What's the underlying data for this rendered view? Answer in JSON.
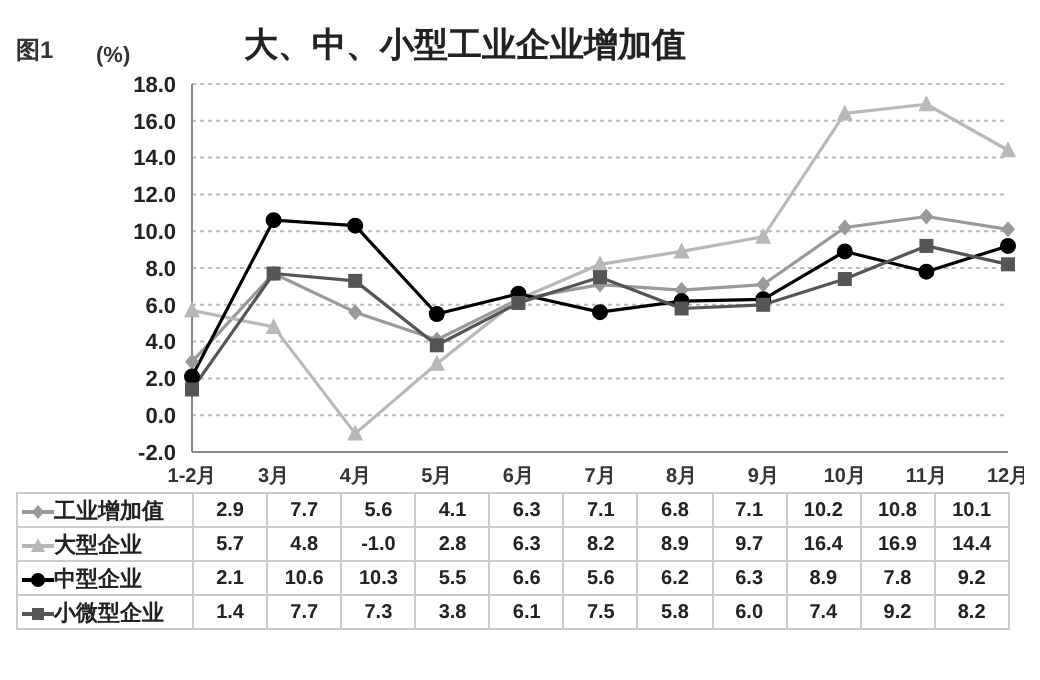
{
  "chart_data": {
    "type": "line",
    "title": "大、中、小型工业企业增加值",
    "ylabel": "(%)",
    "annotations": [
      "图1"
    ],
    "categories": [
      "1-2月",
      "3月",
      "4月",
      "5月",
      "6月",
      "7月",
      "8月",
      "9月",
      "10月",
      "11月",
      "12月"
    ],
    "series": [
      {
        "name": "工业增加值",
        "color": "#999999",
        "marker": "diamond",
        "values": [
          2.9,
          7.7,
          5.6,
          4.1,
          6.3,
          7.1,
          6.8,
          7.1,
          10.2,
          10.8,
          10.1
        ],
        "value_labels": [
          "2.9",
          "7.7",
          "5.6",
          "4.1",
          "6.3",
          "7.1",
          "6.8",
          "7.1",
          "10.2",
          "10.8",
          "10.1"
        ]
      },
      {
        "name": "大型企业",
        "color": "#b8b8b8",
        "marker": "triangle",
        "values": [
          5.7,
          4.8,
          -1.0,
          2.8,
          6.3,
          8.2,
          8.9,
          9.7,
          16.4,
          16.9,
          14.4
        ],
        "value_labels": [
          "5.7",
          "4.8",
          "-1.0",
          "2.8",
          "6.3",
          "8.2",
          "8.9",
          "9.7",
          "16.4",
          "16.9",
          "14.4"
        ]
      },
      {
        "name": "中型企业",
        "color": "#000000",
        "marker": "circle",
        "values": [
          2.1,
          10.6,
          10.3,
          5.5,
          6.6,
          5.6,
          6.2,
          6.3,
          8.9,
          7.8,
          9.2
        ],
        "value_labels": [
          "2.1",
          "10.6",
          "10.3",
          "5.5",
          "6.6",
          "5.6",
          "6.2",
          "6.3",
          "8.9",
          "7.8",
          "9.2"
        ]
      },
      {
        "name": "小微型企业",
        "color": "#555555",
        "marker": "square",
        "values": [
          1.4,
          7.7,
          7.3,
          3.8,
          6.1,
          7.5,
          5.8,
          6.0,
          7.4,
          9.2,
          8.2
        ],
        "value_labels": [
          "1.4",
          "7.7",
          "7.3",
          "3.8",
          "6.1",
          "7.5",
          "5.8",
          "6.0",
          "7.4",
          "9.2",
          "8.2"
        ]
      }
    ],
    "ylim": [
      -2,
      18
    ],
    "yticks": [
      {
        "value": -2,
        "label": "-2.0"
      },
      {
        "value": 0,
        "label": "0.0"
      },
      {
        "value": 2,
        "label": "2.0"
      },
      {
        "value": 4,
        "label": "4.0"
      },
      {
        "value": 6,
        "label": "6.0"
      },
      {
        "value": 8,
        "label": "8.0"
      },
      {
        "value": 10,
        "label": "10.0"
      },
      {
        "value": 12,
        "label": "12.0"
      },
      {
        "value": 14,
        "label": "14.0"
      },
      {
        "value": 16,
        "label": "16.0"
      },
      {
        "value": 18,
        "label": "18.0"
      }
    ],
    "grid": "y",
    "legend": "bottom",
    "line_style": "solid"
  }
}
